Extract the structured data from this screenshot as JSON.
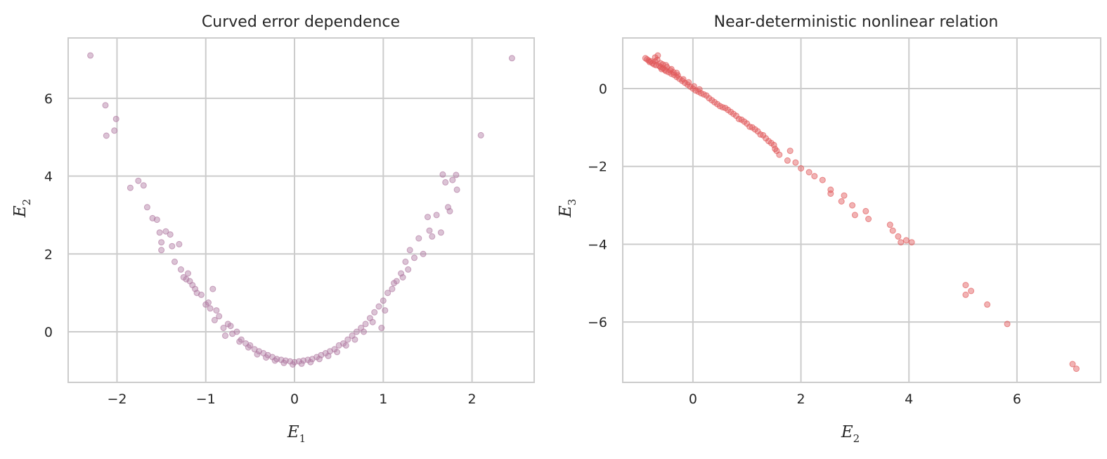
{
  "chart_data": [
    {
      "type": "scatter",
      "title": "Curved error dependence",
      "xlabel": "E",
      "xlabel_sub": "1",
      "ylabel": "E",
      "ylabel_sub": "2",
      "xlim": [
        -2.55,
        2.7
      ],
      "ylim": [
        -1.3,
        7.55
      ],
      "xticks": [
        -2,
        -1,
        0,
        1,
        2
      ],
      "yticks": [
        0,
        2,
        4,
        6
      ],
      "grid": true,
      "marker_color": "#b07aa1",
      "marker_opacity": 0.45,
      "points": [
        [
          -2.3,
          7.1
        ],
        [
          -2.13,
          5.82
        ],
        [
          -2.12,
          5.04
        ],
        [
          -2.03,
          5.17
        ],
        [
          -2.01,
          5.47
        ],
        [
          -1.85,
          3.7
        ],
        [
          -1.76,
          3.88
        ],
        [
          -1.7,
          3.76
        ],
        [
          -1.66,
          3.2
        ],
        [
          -1.6,
          2.92
        ],
        [
          -1.55,
          2.88
        ],
        [
          -1.52,
          2.55
        ],
        [
          -1.5,
          2.3
        ],
        [
          -1.5,
          2.1
        ],
        [
          -1.45,
          2.58
        ],
        [
          -1.4,
          2.5
        ],
        [
          -1.38,
          2.2
        ],
        [
          -1.35,
          1.8
        ],
        [
          -1.3,
          2.25
        ],
        [
          -1.28,
          1.6
        ],
        [
          -1.25,
          1.4
        ],
        [
          -1.2,
          1.5
        ],
        [
          -1.18,
          1.3
        ],
        [
          -1.15,
          1.2
        ],
        [
          -1.1,
          1.0
        ],
        [
          -1.05,
          0.95
        ],
        [
          -1.0,
          0.7
        ],
        [
          -0.95,
          0.6
        ],
        [
          -0.92,
          1.1
        ],
        [
          -0.9,
          0.3
        ],
        [
          -0.85,
          0.4
        ],
        [
          -0.8,
          0.1
        ],
        [
          -0.75,
          0.2
        ],
        [
          -0.7,
          -0.05
        ],
        [
          -0.65,
          0.0
        ],
        [
          -0.6,
          -0.2
        ],
        [
          -0.55,
          -0.3
        ],
        [
          -0.5,
          -0.35
        ],
        [
          -0.45,
          -0.45
        ],
        [
          -0.4,
          -0.5
        ],
        [
          -0.35,
          -0.55
        ],
        [
          -0.3,
          -0.6
        ],
        [
          -0.25,
          -0.65
        ],
        [
          -0.2,
          -0.7
        ],
        [
          -0.15,
          -0.72
        ],
        [
          -0.1,
          -0.74
        ],
        [
          -0.05,
          -0.76
        ],
        [
          0.0,
          -0.78
        ],
        [
          0.05,
          -0.76
        ],
        [
          0.1,
          -0.74
        ],
        [
          0.15,
          -0.72
        ],
        [
          0.2,
          -0.7
        ],
        [
          0.25,
          -0.65
        ],
        [
          0.3,
          -0.6
        ],
        [
          0.35,
          -0.55
        ],
        [
          0.4,
          -0.5
        ],
        [
          0.45,
          -0.45
        ],
        [
          0.5,
          -0.35
        ],
        [
          0.55,
          -0.3
        ],
        [
          0.6,
          -0.2
        ],
        [
          0.65,
          -0.1
        ],
        [
          0.7,
          0.0
        ],
        [
          0.75,
          0.1
        ],
        [
          0.8,
          0.2
        ],
        [
          0.85,
          0.35
        ],
        [
          0.9,
          0.5
        ],
        [
          0.95,
          0.65
        ],
        [
          0.98,
          0.1
        ],
        [
          1.0,
          0.8
        ],
        [
          1.05,
          1.0
        ],
        [
          1.1,
          1.1
        ],
        [
          1.15,
          1.3
        ],
        [
          1.2,
          1.5
        ],
        [
          1.25,
          1.8
        ],
        [
          1.28,
          1.6
        ],
        [
          1.3,
          2.1
        ],
        [
          1.35,
          1.9
        ],
        [
          1.4,
          2.4
        ],
        [
          1.45,
          2.0
        ],
        [
          1.5,
          2.95
        ],
        [
          1.52,
          2.6
        ],
        [
          1.55,
          2.45
        ],
        [
          1.6,
          3.0
        ],
        [
          1.65,
          2.55
        ],
        [
          1.67,
          4.04
        ],
        [
          1.7,
          3.84
        ],
        [
          1.73,
          3.2
        ],
        [
          1.75,
          3.1
        ],
        [
          1.78,
          3.9
        ],
        [
          1.82,
          4.03
        ],
        [
          1.83,
          3.65
        ],
        [
          2.1,
          5.05
        ],
        [
          2.45,
          7.03
        ],
        [
          -0.78,
          -0.1
        ],
        [
          -0.72,
          0.15
        ],
        [
          -0.62,
          -0.25
        ],
        [
          -0.52,
          -0.4
        ],
        [
          -0.42,
          -0.58
        ],
        [
          -0.32,
          -0.66
        ],
        [
          -0.22,
          -0.74
        ],
        [
          -0.12,
          -0.8
        ],
        [
          -0.02,
          -0.84
        ],
        [
          0.08,
          -0.82
        ],
        [
          0.18,
          -0.78
        ],
        [
          0.28,
          -0.7
        ],
        [
          0.38,
          -0.62
        ],
        [
          0.48,
          -0.52
        ],
        [
          0.58,
          -0.35
        ],
        [
          0.68,
          -0.2
        ],
        [
          0.78,
          0.0
        ],
        [
          0.88,
          0.25
        ],
        [
          -0.88,
          0.55
        ],
        [
          -0.97,
          0.75
        ],
        [
          1.02,
          0.55
        ],
        [
          1.12,
          1.25
        ],
        [
          -1.12,
          1.1
        ],
        [
          -1.22,
          1.35
        ],
        [
          1.22,
          1.4
        ]
      ]
    },
    {
      "type": "scatter",
      "title": "Near-deterministic nonlinear relation",
      "xlabel": "E",
      "xlabel_sub": "2",
      "ylabel": "E",
      "ylabel_sub": "3",
      "xlim": [
        -1.3,
        7.55
      ],
      "ylim": [
        -7.55,
        1.3
      ],
      "xticks": [
        0,
        2,
        4,
        6
      ],
      "yticks": [
        0,
        -2,
        -4,
        -6
      ],
      "grid": true,
      "marker_color": "#e15759",
      "marker_opacity": 0.45,
      "points": [
        [
          -0.85,
          0.75
        ],
        [
          -0.82,
          0.72
        ],
        [
          -0.8,
          0.68
        ],
        [
          -0.78,
          0.7
        ],
        [
          -0.75,
          0.65
        ],
        [
          -0.72,
          0.62
        ],
        [
          -0.7,
          0.8
        ],
        [
          -0.68,
          0.6
        ],
        [
          -0.65,
          0.85
        ],
        [
          -0.62,
          0.58
        ],
        [
          -0.6,
          0.55
        ],
        [
          -0.58,
          0.5
        ],
        [
          -0.55,
          0.52
        ],
        [
          -0.52,
          0.48
        ],
        [
          -0.5,
          0.45
        ],
        [
          -0.45,
          0.42
        ],
        [
          -0.4,
          0.38
        ],
        [
          -0.35,
          0.35
        ],
        [
          -0.3,
          0.3
        ],
        [
          -0.25,
          0.25
        ],
        [
          -0.2,
          0.2
        ],
        [
          -0.15,
          0.15
        ],
        [
          -0.1,
          0.1
        ],
        [
          -0.05,
          0.05
        ],
        [
          0.0,
          0.0
        ],
        [
          0.05,
          -0.05
        ],
        [
          0.1,
          -0.08
        ],
        [
          0.15,
          -0.12
        ],
        [
          0.2,
          -0.15
        ],
        [
          0.3,
          -0.25
        ],
        [
          0.4,
          -0.35
        ],
        [
          0.5,
          -0.45
        ],
        [
          0.6,
          -0.5
        ],
        [
          0.7,
          -0.6
        ],
        [
          0.8,
          -0.7
        ],
        [
          0.9,
          -0.8
        ],
        [
          1.0,
          -0.9
        ],
        [
          1.1,
          -1.0
        ],
        [
          1.2,
          -1.1
        ],
        [
          1.3,
          -1.2
        ],
        [
          1.4,
          -1.35
        ],
        [
          1.5,
          -1.45
        ],
        [
          1.55,
          -1.6
        ],
        [
          1.6,
          -1.7
        ],
        [
          1.75,
          -1.85
        ],
        [
          1.8,
          -1.6
        ],
        [
          1.9,
          -1.9
        ],
        [
          2.0,
          -2.05
        ],
        [
          2.15,
          -2.15
        ],
        [
          2.25,
          -2.25
        ],
        [
          2.4,
          -2.35
        ],
        [
          2.55,
          -2.6
        ],
        [
          2.55,
          -2.7
        ],
        [
          2.75,
          -2.9
        ],
        [
          2.8,
          -2.75
        ],
        [
          2.95,
          -3.0
        ],
        [
          3.0,
          -3.25
        ],
        [
          3.2,
          -3.15
        ],
        [
          3.25,
          -3.35
        ],
        [
          3.65,
          -3.5
        ],
        [
          3.7,
          -3.65
        ],
        [
          3.8,
          -3.8
        ],
        [
          3.85,
          -3.95
        ],
        [
          3.95,
          -3.9
        ],
        [
          4.05,
          -3.95
        ],
        [
          5.05,
          -5.05
        ],
        [
          5.05,
          -5.3
        ],
        [
          5.15,
          -5.2
        ],
        [
          5.45,
          -5.55
        ],
        [
          5.82,
          -6.05
        ],
        [
          7.03,
          -7.08
        ],
        [
          7.1,
          -7.2
        ],
        [
          -0.88,
          0.78
        ],
        [
          -0.66,
          0.74
        ],
        [
          -0.56,
          0.62
        ],
        [
          -0.48,
          0.55
        ],
        [
          -0.42,
          0.47
        ],
        [
          -0.36,
          0.42
        ],
        [
          -0.28,
          0.34
        ],
        [
          -0.18,
          0.24
        ],
        [
          -0.08,
          0.16
        ],
        [
          0.02,
          0.06
        ],
        [
          0.12,
          -0.02
        ],
        [
          0.25,
          -0.18
        ],
        [
          0.35,
          -0.3
        ],
        [
          0.45,
          -0.4
        ],
        [
          0.55,
          -0.48
        ],
        [
          0.65,
          -0.55
        ],
        [
          0.75,
          -0.65
        ],
        [
          0.85,
          -0.78
        ],
        [
          0.95,
          -0.85
        ],
        [
          1.05,
          -0.98
        ],
        [
          1.15,
          -1.05
        ],
        [
          1.25,
          -1.18
        ],
        [
          1.35,
          -1.28
        ],
        [
          1.45,
          -1.4
        ],
        [
          1.52,
          -1.55
        ],
        [
          -0.7,
          0.7
        ],
        [
          -0.6,
          0.65
        ],
        [
          -0.5,
          0.6
        ],
        [
          -0.4,
          0.5
        ],
        [
          -0.3,
          0.4
        ]
      ]
    }
  ]
}
